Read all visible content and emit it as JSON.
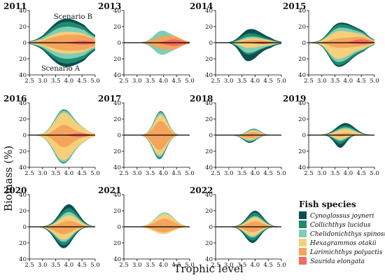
{
  "chart_data": {
    "type": "area",
    "ylabel": "Biomass (%)",
    "xlabel": "Trophic level",
    "x_ticks": [
      "2.5",
      "3.0",
      "3.5",
      "4.0",
      "4.5",
      "5.0"
    ],
    "y_ticks": [
      "40",
      "20",
      "0",
      "20",
      "40"
    ],
    "xlim": [
      2.5,
      5.0
    ],
    "ylim": [
      -40,
      40
    ],
    "upper_label": "Scenario B",
    "lower_label": "Scenario A",
    "legend": {
      "title": "Fish species",
      "placement": "bottom-right",
      "items": [
        {
          "name": "Cynoglossus joyneri",
          "color": "#0b4f4f"
        },
        {
          "name": "Collichthys lucidus",
          "color": "#1f8a70"
        },
        {
          "name": "Chelidonichthys spinosus",
          "color": "#7fcdb4"
        },
        {
          "name": "Hexagrammos otakii",
          "color": "#f5cf7a"
        },
        {
          "name": "Larimichthys polyactis",
          "color": "#f6a35c"
        },
        {
          "name": "Saurida elongata",
          "color": "#f26b5e"
        }
      ]
    },
    "panels": [
      {
        "year": "2011",
        "upper": [
          {
            "w": 1.0,
            "c": 3.75,
            "s": 0.55,
            "a": 5
          },
          {
            "w": 1.5,
            "c": 3.8,
            "s": 0.5,
            "a": 3
          },
          {
            "w": 1.6,
            "c": 3.8,
            "s": 0.55,
            "a": 4
          },
          {
            "w": 1.0,
            "c": 3.6,
            "s": 0.55,
            "a": 10
          },
          {
            "w": 2.3,
            "c": 3.8,
            "s": 0.55,
            "a": 5
          },
          {
            "w": 0.6,
            "c": 4.55,
            "s": 0.3,
            "a": 2
          }
        ],
        "lower": [
          {
            "w": 1.0,
            "c": 3.75,
            "s": 0.55,
            "a": 5
          },
          {
            "w": 1.5,
            "c": 3.8,
            "s": 0.5,
            "a": 3
          },
          {
            "w": 1.6,
            "c": 3.8,
            "s": 0.55,
            "a": 4
          },
          {
            "w": 1.0,
            "c": 3.6,
            "s": 0.55,
            "a": 10
          },
          {
            "w": 2.3,
            "c": 3.8,
            "s": 0.55,
            "a": 5
          },
          {
            "w": 0.6,
            "c": 4.55,
            "s": 0.3,
            "a": 2
          }
        ]
      },
      {
        "year": "2013",
        "upper": [
          {
            "w": 0.0,
            "c": 3.9,
            "s": 0.3,
            "a": 0
          },
          {
            "w": 0.0,
            "c": 3.9,
            "s": 0.3,
            "a": 0
          },
          {
            "w": 1.4,
            "c": 3.9,
            "s": 0.25,
            "a": 0
          },
          {
            "w": 0.0,
            "c": 3.9,
            "s": 0.3,
            "a": 0
          },
          {
            "w": 1.0,
            "c": 3.9,
            "s": 0.3,
            "a": 3
          },
          {
            "w": 0.8,
            "c": 4.4,
            "s": 0.3,
            "a": 0
          }
        ],
        "lower": [
          {
            "w": 0.0,
            "c": 3.9,
            "s": 0.3,
            "a": 0
          },
          {
            "w": 0.0,
            "c": 3.9,
            "s": 0.3,
            "a": 0
          },
          {
            "w": 1.4,
            "c": 3.9,
            "s": 0.25,
            "a": 0
          },
          {
            "w": 0.0,
            "c": 3.9,
            "s": 0.3,
            "a": 0
          },
          {
            "w": 1.0,
            "c": 3.9,
            "s": 0.3,
            "a": 3
          },
          {
            "w": 0.8,
            "c": 4.4,
            "s": 0.3,
            "a": 0
          }
        ]
      },
      {
        "year": "2014",
        "upper": [
          {
            "w": 2.0,
            "c": 3.8,
            "s": 0.3,
            "a": 3
          },
          {
            "w": 1.5,
            "c": 3.75,
            "s": 0.3,
            "a": 3
          },
          {
            "w": 0.8,
            "c": 3.7,
            "s": 0.3,
            "a": 3
          },
          {
            "w": 1.0,
            "c": 3.8,
            "s": 0.3,
            "a": 3
          },
          {
            "w": 1.0,
            "c": 3.8,
            "s": 0.3,
            "a": 3
          },
          {
            "w": 0.5,
            "c": 4.3,
            "s": 0.3,
            "a": 0
          }
        ],
        "lower": [
          {
            "w": 1.7,
            "c": 3.7,
            "s": 0.25,
            "a": 4
          },
          {
            "w": 0.5,
            "c": 3.7,
            "s": 0.25,
            "a": 4
          },
          {
            "w": 1.3,
            "c": 3.7,
            "s": 0.25,
            "a": 4
          },
          {
            "w": 1.3,
            "c": 3.7,
            "s": 0.25,
            "a": 4
          },
          {
            "w": 0.0,
            "c": 3.7,
            "s": 0.25,
            "a": 4
          },
          {
            "w": 0.4,
            "c": 4.3,
            "s": 0.3,
            "a": 0
          }
        ]
      },
      {
        "year": "2015",
        "upper": [
          {
            "w": 0.5,
            "c": 3.7,
            "s": 0.4,
            "a": 4
          },
          {
            "w": 1.0,
            "c": 3.7,
            "s": 0.4,
            "a": 4
          },
          {
            "w": 1.0,
            "c": 3.7,
            "s": 0.4,
            "a": 4
          },
          {
            "w": 2.2,
            "c": 3.6,
            "s": 0.35,
            "a": 6
          },
          {
            "w": 1.3,
            "c": 3.7,
            "s": 0.4,
            "a": 4
          },
          {
            "w": 1.2,
            "c": 4.5,
            "s": 0.3,
            "a": 0
          }
        ],
        "lower": [
          {
            "w": 0.5,
            "c": 3.65,
            "s": 0.35,
            "a": 5
          },
          {
            "w": 1.0,
            "c": 3.65,
            "s": 0.35,
            "a": 5
          },
          {
            "w": 1.0,
            "c": 3.65,
            "s": 0.35,
            "a": 5
          },
          {
            "w": 3.6,
            "c": 3.55,
            "s": 0.3,
            "a": 7
          },
          {
            "w": 1.6,
            "c": 3.65,
            "s": 0.35,
            "a": 5
          },
          {
            "w": 0.5,
            "c": 4.5,
            "s": 0.3,
            "a": 0
          }
        ]
      },
      {
        "year": "2016",
        "upper": [
          {
            "w": 0.0,
            "c": 3.8,
            "s": 0.35,
            "a": 0
          },
          {
            "w": 0.3,
            "c": 3.8,
            "s": 0.35,
            "a": 0
          },
          {
            "w": 0.6,
            "c": 3.8,
            "s": 0.35,
            "a": 0
          },
          {
            "w": 2.6,
            "c": 3.75,
            "s": 0.35,
            "a": 2
          },
          {
            "w": 2.6,
            "c": 3.8,
            "s": 0.3,
            "a": 0
          },
          {
            "w": 0.5,
            "c": 4.4,
            "s": 0.3,
            "a": 0
          }
        ],
        "lower": [
          {
            "w": 0.0,
            "c": 3.75,
            "s": 0.35,
            "a": 0
          },
          {
            "w": 0.3,
            "c": 3.75,
            "s": 0.35,
            "a": 0
          },
          {
            "w": 0.6,
            "c": 3.75,
            "s": 0.35,
            "a": 0
          },
          {
            "w": 3.0,
            "c": 3.7,
            "s": 0.35,
            "a": 2
          },
          {
            "w": 3.3,
            "c": 3.8,
            "s": 0.3,
            "a": 0
          },
          {
            "w": 0.5,
            "c": 4.4,
            "s": 0.3,
            "a": 0
          }
        ]
      },
      {
        "year": "2017",
        "upper": [
          {
            "w": 0.0,
            "c": 3.9,
            "s": 0.25,
            "a": 0
          },
          {
            "w": 0.4,
            "c": 3.9,
            "s": 0.25,
            "a": 0
          },
          {
            "w": 0.6,
            "c": 3.9,
            "s": 0.25,
            "a": 0
          },
          {
            "w": 1.6,
            "c": 3.9,
            "s": 0.25,
            "a": 0
          },
          {
            "w": 3.6,
            "c": 3.9,
            "s": 0.25,
            "a": 0
          },
          {
            "w": 0.0,
            "c": 4.3,
            "s": 0.3,
            "a": 0
          }
        ],
        "lower": [
          {
            "w": 0.0,
            "c": 3.85,
            "s": 0.25,
            "a": 0
          },
          {
            "w": 0.5,
            "c": 3.85,
            "s": 0.25,
            "a": 0
          },
          {
            "w": 0.5,
            "c": 3.85,
            "s": 0.25,
            "a": 0
          },
          {
            "w": 1.2,
            "c": 3.85,
            "s": 0.25,
            "a": 0
          },
          {
            "w": 3.6,
            "c": 3.85,
            "s": 0.25,
            "a": 0
          },
          {
            "w": 0.0,
            "c": 4.3,
            "s": 0.3,
            "a": 0
          }
        ]
      },
      {
        "year": "2018",
        "upper": [
          {
            "w": 0.0,
            "c": 3.95,
            "s": 0.25,
            "a": 0
          },
          {
            "w": 0.2,
            "c": 3.95,
            "s": 0.25,
            "a": 0
          },
          {
            "w": 0.4,
            "c": 3.95,
            "s": 0.25,
            "a": 0
          },
          {
            "w": 0.5,
            "c": 3.95,
            "s": 0.25,
            "a": 0
          },
          {
            "w": 0.9,
            "c": 3.95,
            "s": 0.25,
            "a": 0
          },
          {
            "w": 0.0,
            "c": 4.3,
            "s": 0.3,
            "a": 0
          }
        ],
        "lower": [
          {
            "w": 0.2,
            "c": 3.8,
            "s": 0.25,
            "a": 0
          },
          {
            "w": 0.2,
            "c": 3.8,
            "s": 0.25,
            "a": 0
          },
          {
            "w": 0.4,
            "c": 3.8,
            "s": 0.25,
            "a": 0
          },
          {
            "w": 0.4,
            "c": 3.8,
            "s": 0.25,
            "a": 0
          },
          {
            "w": 0.8,
            "c": 3.8,
            "s": 0.25,
            "a": 0
          },
          {
            "w": 0.0,
            "c": 4.3,
            "s": 0.3,
            "a": 0
          }
        ]
      },
      {
        "year": "2019",
        "upper": [
          {
            "w": 0.6,
            "c": 3.9,
            "s": 0.35,
            "a": 0
          },
          {
            "w": 0.5,
            "c": 3.9,
            "s": 0.35,
            "a": 0
          },
          {
            "w": 0.4,
            "c": 3.9,
            "s": 0.35,
            "a": 0
          },
          {
            "w": 1.0,
            "c": 3.9,
            "s": 0.35,
            "a": 0
          },
          {
            "w": 0.5,
            "c": 3.9,
            "s": 0.35,
            "a": 0
          },
          {
            "w": 0.0,
            "c": 4.3,
            "s": 0.3,
            "a": 0
          }
        ],
        "lower": [
          {
            "w": 0.8,
            "c": 3.7,
            "s": 0.22,
            "a": 0
          },
          {
            "w": 0.6,
            "c": 3.7,
            "s": 0.22,
            "a": 0
          },
          {
            "w": 0.3,
            "c": 3.7,
            "s": 0.22,
            "a": 0
          },
          {
            "w": 0.6,
            "c": 3.7,
            "s": 0.22,
            "a": 0
          },
          {
            "w": 0.3,
            "c": 3.7,
            "s": 0.22,
            "a": 0
          },
          {
            "w": 0.0,
            "c": 4.3,
            "s": 0.3,
            "a": 0
          }
        ]
      },
      {
        "year": "2020",
        "upper": [
          {
            "w": 1.0,
            "c": 4.0,
            "s": 0.35,
            "a": 0
          },
          {
            "w": 1.0,
            "c": 4.0,
            "s": 0.35,
            "a": 0
          },
          {
            "w": 0.8,
            "c": 4.0,
            "s": 0.35,
            "a": 0
          },
          {
            "w": 1.5,
            "c": 4.0,
            "s": 0.35,
            "a": 0
          },
          {
            "w": 1.5,
            "c": 4.0,
            "s": 0.35,
            "a": 0
          },
          {
            "w": 0.0,
            "c": 4.3,
            "s": 0.3,
            "a": 0
          }
        ],
        "lower": [
          {
            "w": 0.7,
            "c": 3.8,
            "s": 0.33,
            "a": 0
          },
          {
            "w": 0.8,
            "c": 3.8,
            "s": 0.33,
            "a": 0
          },
          {
            "w": 0.5,
            "c": 3.8,
            "s": 0.33,
            "a": 0
          },
          {
            "w": 1.3,
            "c": 3.8,
            "s": 0.33,
            "a": 0
          },
          {
            "w": 1.7,
            "c": 3.8,
            "s": 0.33,
            "a": 0
          },
          {
            "w": 0.0,
            "c": 4.3,
            "s": 0.3,
            "a": 0
          }
        ]
      },
      {
        "year": "2021",
        "upper": [
          {
            "w": 0.0,
            "c": 4.05,
            "s": 0.35,
            "a": 0
          },
          {
            "w": 0.0,
            "c": 4.05,
            "s": 0.35,
            "a": 0
          },
          {
            "w": 0.2,
            "c": 4.05,
            "s": 0.35,
            "a": 0
          },
          {
            "w": 0.7,
            "c": 4.05,
            "s": 0.35,
            "a": 0
          },
          {
            "w": 1.1,
            "c": 4.05,
            "s": 0.35,
            "a": 0
          },
          {
            "w": 0.0,
            "c": 4.3,
            "s": 0.3,
            "a": 0
          }
        ],
        "lower": [
          {
            "w": 0.0,
            "c": 4.0,
            "s": 0.35,
            "a": 0
          },
          {
            "w": 0.0,
            "c": 4.0,
            "s": 0.35,
            "a": 0
          },
          {
            "w": 0.0,
            "c": 4.0,
            "s": 0.35,
            "a": 0
          },
          {
            "w": 0.4,
            "c": 4.0,
            "s": 0.35,
            "a": 0
          },
          {
            "w": 1.1,
            "c": 4.0,
            "s": 0.35,
            "a": 0
          },
          {
            "w": 0.0,
            "c": 4.3,
            "s": 0.3,
            "a": 0
          }
        ]
      },
      {
        "year": "2022",
        "upper": [
          {
            "w": 0.3,
            "c": 4.0,
            "s": 0.3,
            "a": 0
          },
          {
            "w": 0.5,
            "c": 4.0,
            "s": 0.3,
            "a": 0
          },
          {
            "w": 0.2,
            "c": 4.0,
            "s": 0.3,
            "a": 0
          },
          {
            "w": 0.6,
            "c": 4.0,
            "s": 0.3,
            "a": 0
          },
          {
            "w": 0.8,
            "c": 4.0,
            "s": 0.3,
            "a": 0
          },
          {
            "w": 0.0,
            "c": 4.3,
            "s": 0.3,
            "a": 0
          }
        ],
        "lower": [
          {
            "w": 0.3,
            "c": 3.9,
            "s": 0.28,
            "a": 0
          },
          {
            "w": 0.4,
            "c": 3.9,
            "s": 0.28,
            "a": 0
          },
          {
            "w": 0.2,
            "c": 3.9,
            "s": 0.28,
            "a": 0
          },
          {
            "w": 0.5,
            "c": 3.9,
            "s": 0.28,
            "a": 0
          },
          {
            "w": 0.7,
            "c": 3.9,
            "s": 0.28,
            "a": 0
          },
          {
            "w": 0.0,
            "c": 4.3,
            "s": 0.3,
            "a": 0
          }
        ]
      }
    ]
  }
}
